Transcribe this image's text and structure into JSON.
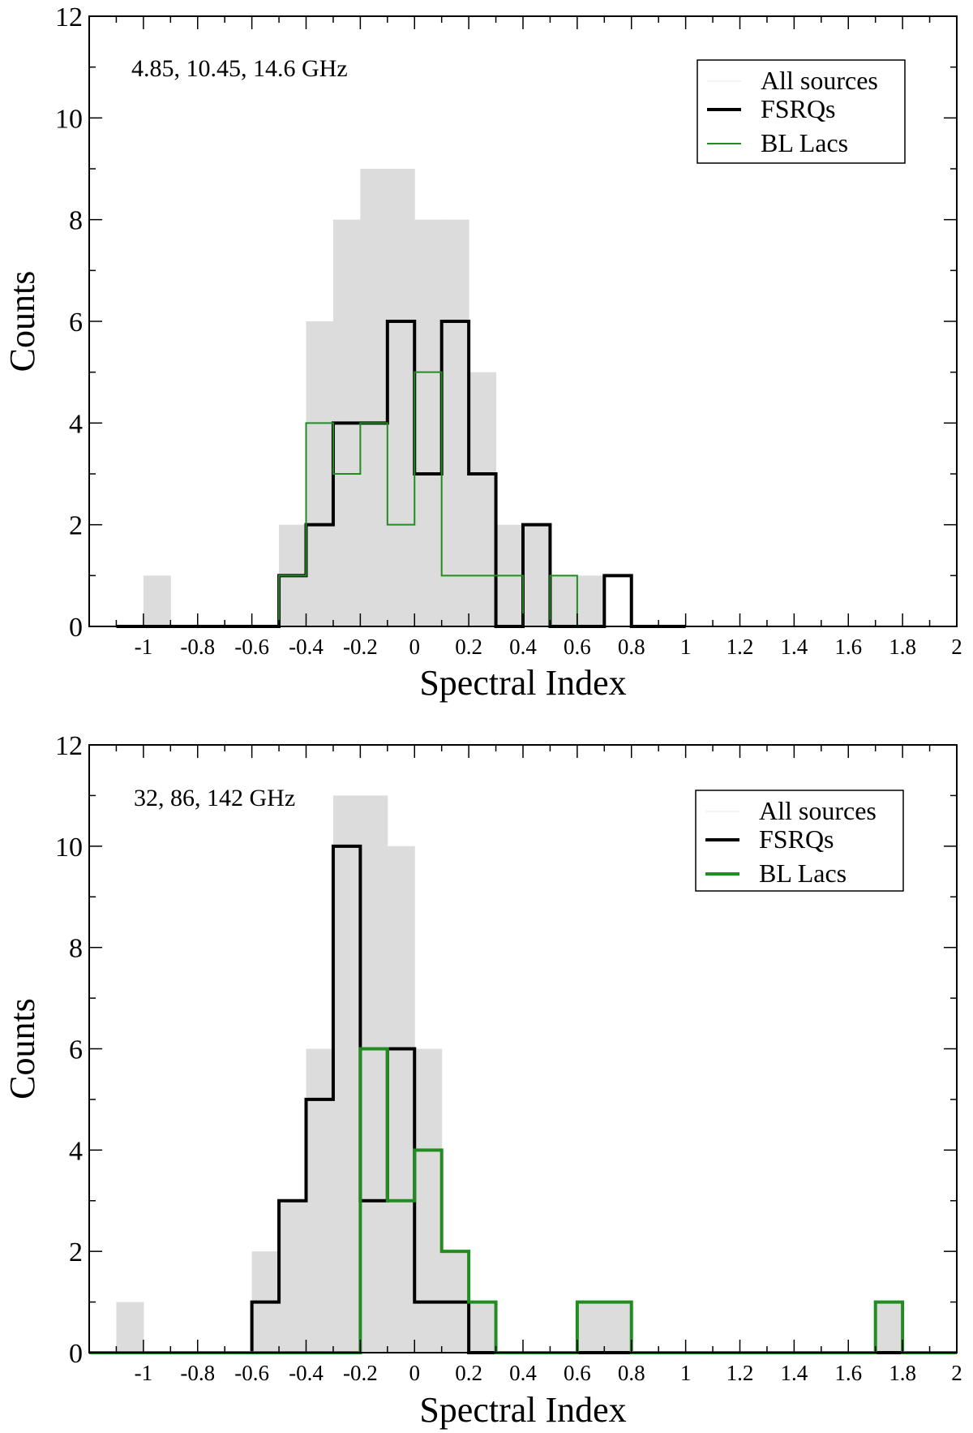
{
  "chart_data": [
    {
      "type": "histogram",
      "annotation": "4.85, 10.45, 14.6 GHz",
      "xlabel": "Spectral Index",
      "ylabel": "Counts",
      "xlim": [
        -1.2,
        2.0
      ],
      "ylim": [
        0,
        12
      ],
      "x_ticks": [
        -1,
        -0.8,
        -0.6,
        -0.4,
        -0.2,
        0,
        0.2,
        0.4,
        0.6,
        0.8,
        1,
        1.2,
        1.4,
        1.6,
        1.8,
        2
      ],
      "x_tick_labels": [
        "-1",
        "-0.8",
        "-0.6",
        "-0.4",
        "-0.2",
        "0",
        "0.2",
        "0.4",
        "0.6",
        "0.8",
        "1",
        "1.2",
        "1.4",
        "1.6",
        "1.8",
        "2"
      ],
      "y_ticks": [
        0,
        2,
        4,
        6,
        8,
        10,
        12
      ],
      "y_tick_labels": [
        "0",
        "2",
        "4",
        "6",
        "8",
        "10",
        "12"
      ],
      "bin_edges": [
        -1.1,
        -1.0,
        -0.9,
        -0.8,
        -0.7,
        -0.6,
        -0.5,
        -0.4,
        -0.3,
        -0.2,
        -0.1,
        0.0,
        0.1,
        0.2,
        0.3,
        0.4,
        0.5,
        0.6,
        0.7,
        0.8,
        0.9,
        1.0
      ],
      "legend": {
        "position": "top-right",
        "labels": [
          "All sources",
          "FSRQs",
          "BL Lacs"
        ],
        "bl_lacs_thick": false
      },
      "series": [
        {
          "name": "All sources",
          "style": "fill",
          "color": "#dcdcdc",
          "values": [
            0,
            1,
            0,
            0,
            0,
            0,
            2,
            6,
            8,
            9,
            9,
            8,
            8,
            5,
            2,
            2,
            1,
            1,
            0,
            0,
            0
          ]
        },
        {
          "name": "FSRQs",
          "style": "step",
          "color": "#000000",
          "values": [
            0,
            0,
            0,
            0,
            0,
            0,
            1,
            2,
            4,
            4,
            6,
            3,
            6,
            3,
            0,
            2,
            0,
            0,
            1,
            0,
            0
          ]
        },
        {
          "name": "BL Lacs",
          "style": "step",
          "color": "#228B22",
          "values": [
            0,
            0,
            0,
            0,
            0,
            0,
            1,
            4,
            3,
            4,
            2,
            5,
            1,
            1,
            1,
            0,
            1,
            0,
            0,
            0,
            0
          ]
        }
      ]
    },
    {
      "type": "histogram",
      "annotation": "32, 86, 142 GHz",
      "xlabel": "Spectral Index",
      "ylabel": "Counts",
      "xlim": [
        -1.2,
        2.0
      ],
      "ylim": [
        0,
        12
      ],
      "x_ticks": [
        -1,
        -0.8,
        -0.6,
        -0.4,
        -0.2,
        0,
        0.2,
        0.4,
        0.6,
        0.8,
        1,
        1.2,
        1.4,
        1.6,
        1.8,
        2
      ],
      "x_tick_labels": [
        "-1",
        "-0.8",
        "-0.6",
        "-0.4",
        "-0.2",
        "0",
        "0.2",
        "0.4",
        "0.6",
        "0.8",
        "1",
        "1.2",
        "1.4",
        "1.6",
        "1.8",
        "2"
      ],
      "y_ticks": [
        0,
        2,
        4,
        6,
        8,
        10,
        12
      ],
      "y_tick_labels": [
        "0",
        "2",
        "4",
        "6",
        "8",
        "10",
        "12"
      ],
      "bin_edges": [
        -1.2,
        -1.1,
        -1.0,
        -0.9,
        -0.8,
        -0.7,
        -0.6,
        -0.5,
        -0.4,
        -0.3,
        -0.2,
        -0.1,
        0.0,
        0.1,
        0.2,
        0.3,
        0.4,
        0.5,
        0.6,
        0.7,
        0.8,
        0.9,
        1.0,
        1.1,
        1.2,
        1.3,
        1.4,
        1.5,
        1.6,
        1.7,
        1.8,
        1.9,
        2.0
      ],
      "legend": {
        "position": "top-right",
        "labels": [
          "All sources",
          "FSRQs",
          "BL Lacs"
        ],
        "bl_lacs_thick": true
      },
      "series": [
        {
          "name": "All sources",
          "style": "fill",
          "color": "#dcdcdc",
          "values": [
            0,
            1,
            0,
            0,
            0,
            0,
            2,
            3,
            6,
            11,
            11,
            10,
            6,
            2,
            1,
            0,
            0,
            0,
            1,
            1,
            0,
            0,
            0,
            0,
            0,
            0,
            0,
            0,
            0,
            1,
            0,
            0
          ]
        },
        {
          "name": "FSRQs",
          "style": "step",
          "color": "#000000",
          "values": [
            0,
            0,
            0,
            0,
            0,
            0,
            1,
            3,
            5,
            10,
            3,
            6,
            1,
            1,
            0,
            0,
            0,
            0,
            0,
            0,
            0,
            0,
            0,
            0,
            0,
            0,
            0,
            0,
            0,
            0,
            0,
            0
          ]
        },
        {
          "name": "BL Lacs",
          "style": "step",
          "color": "#228B22",
          "values": [
            0,
            0,
            0,
            0,
            0,
            0,
            0,
            0,
            0,
            0,
            6,
            3,
            4,
            2,
            1,
            0,
            0,
            0,
            1,
            1,
            0,
            0,
            0,
            0,
            0,
            0,
            0,
            0,
            0,
            1,
            0,
            0
          ]
        }
      ]
    }
  ]
}
